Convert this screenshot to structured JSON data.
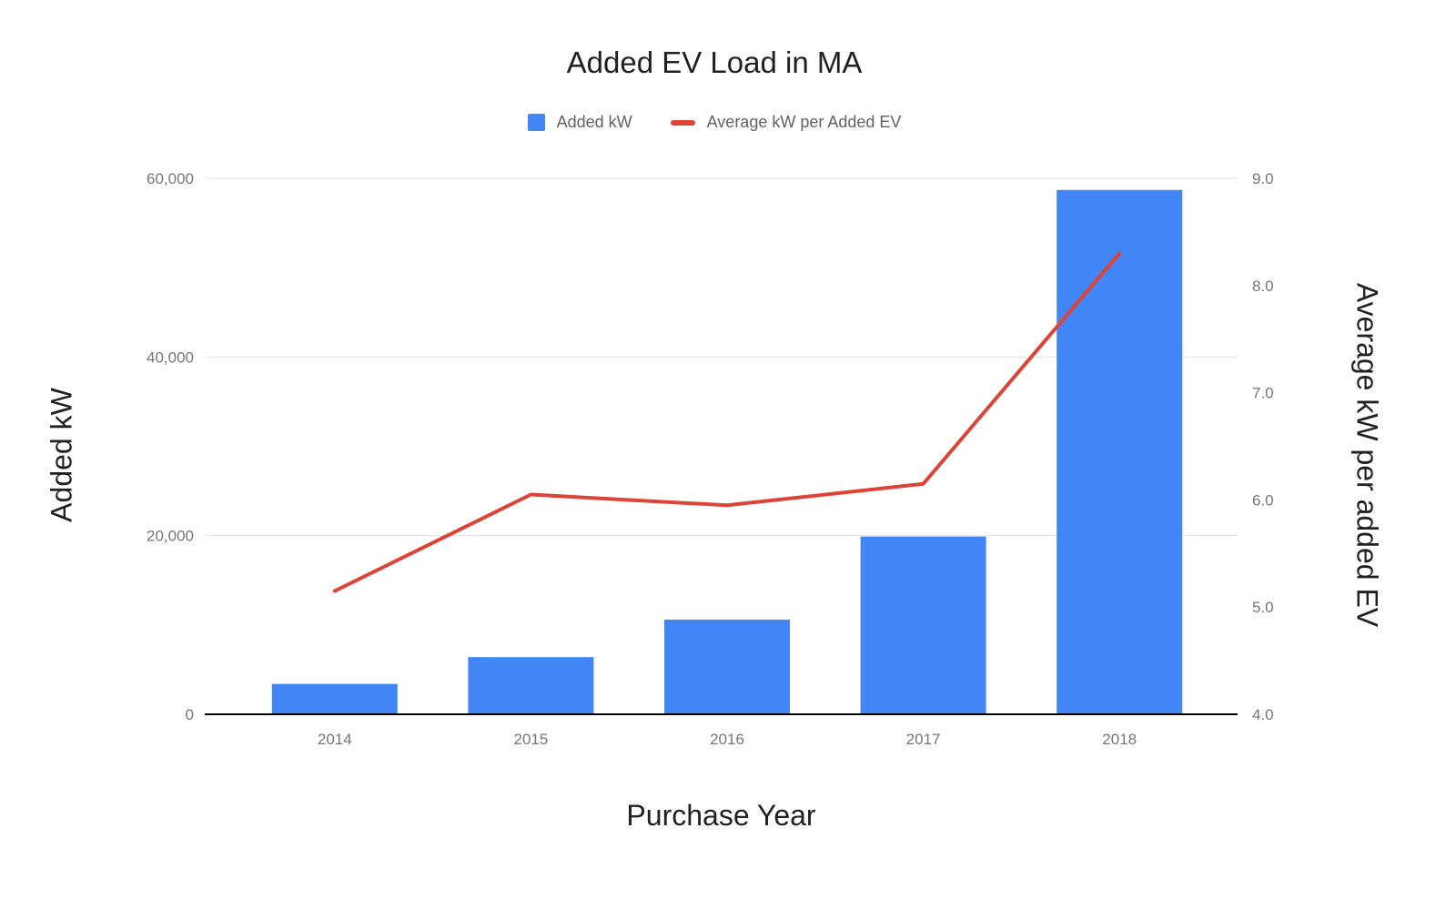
{
  "chart_data": {
    "type": "combo",
    "title": "Added EV Load in MA",
    "categories": [
      "2014",
      "2015",
      "2016",
      "2017",
      "2018"
    ],
    "series": [
      {
        "name": "Added kW",
        "type": "bar",
        "axis": "left",
        "color": "#4285f4",
        "values": [
          3400,
          6400,
          10600,
          19900,
          58700
        ]
      },
      {
        "name": "Average kW per Added EV",
        "type": "line",
        "axis": "right",
        "color": "#db4437",
        "values": [
          5.15,
          6.05,
          5.95,
          6.15,
          8.3
        ]
      }
    ],
    "xlabel": "Purchase Year",
    "left_axis": {
      "label": "Added kW",
      "min": 0,
      "max": 60000,
      "ticks": [
        0,
        20000,
        40000,
        60000
      ],
      "tick_labels": [
        "0",
        "20,000",
        "40,000",
        "60,000"
      ]
    },
    "right_axis": {
      "label": "Average kW per added EV",
      "min": 4.0,
      "max": 9.0,
      "ticks": [
        4,
        5,
        6,
        7,
        8,
        9
      ],
      "tick_labels": [
        "4.0",
        "5.0",
        "6.0",
        "7.0",
        "8.0",
        "9.0"
      ]
    },
    "grid": "horizontal",
    "legend_position": "top",
    "background": "#ffffff",
    "gridline_color": "#e3e3e3",
    "axis_line_color": "#000000"
  }
}
